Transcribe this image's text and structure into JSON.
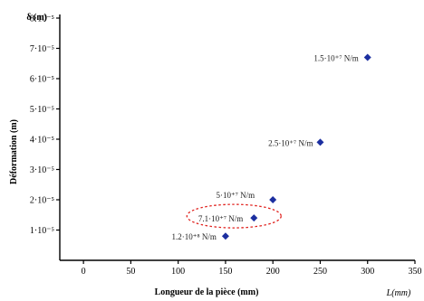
{
  "chart_data": {
    "type": "scatter",
    "xlabel": "Longueur de la pièce (mm)",
    "ylabel": "Déformation (m)",
    "y_unit_label": "δ (m)",
    "x_unit_label": "L(mm)",
    "xlim": [
      -25,
      350
    ],
    "ylim": [
      0,
      8e-05
    ],
    "x_ticks": [
      0,
      50,
      100,
      150,
      200,
      250,
      300,
      350
    ],
    "x_tick_labels": [
      "0",
      "50",
      "100",
      "150",
      "200",
      "250",
      "300",
      "350"
    ],
    "y_ticks": [
      1e-05,
      2e-05,
      3e-05,
      4e-05,
      5e-05,
      6e-05,
      7e-05,
      8e-05
    ],
    "y_tick_labels": [
      "1·10⁻⁵",
      "2·10⁻⁵",
      "3·10⁻⁵",
      "4·10⁻⁵",
      "5·10⁻⁵",
      "6·10⁻⁵",
      "7·10⁻⁵",
      "8·10⁻⁵"
    ],
    "grid": false,
    "legend": "none",
    "marker": "diamond",
    "marker_color": "#1c2fa0",
    "points": [
      {
        "x": 150,
        "y": 8e-06,
        "label": "1.2·10⁺⁸ N/m"
      },
      {
        "x": 180,
        "y": 1.4e-05,
        "label": "7.1·10⁺⁷ N/m",
        "highlighted": true
      },
      {
        "x": 200,
        "y": 2e-05,
        "label": "5·10⁺⁷ N/m"
      },
      {
        "x": 250,
        "y": 3.9e-05,
        "label": "2.5·10⁺⁷ N/m"
      },
      {
        "x": 300,
        "y": 6.7e-05,
        "label": "1.5·10⁺⁷ N/m"
      }
    ],
    "highlight_color": "#e0201c"
  }
}
